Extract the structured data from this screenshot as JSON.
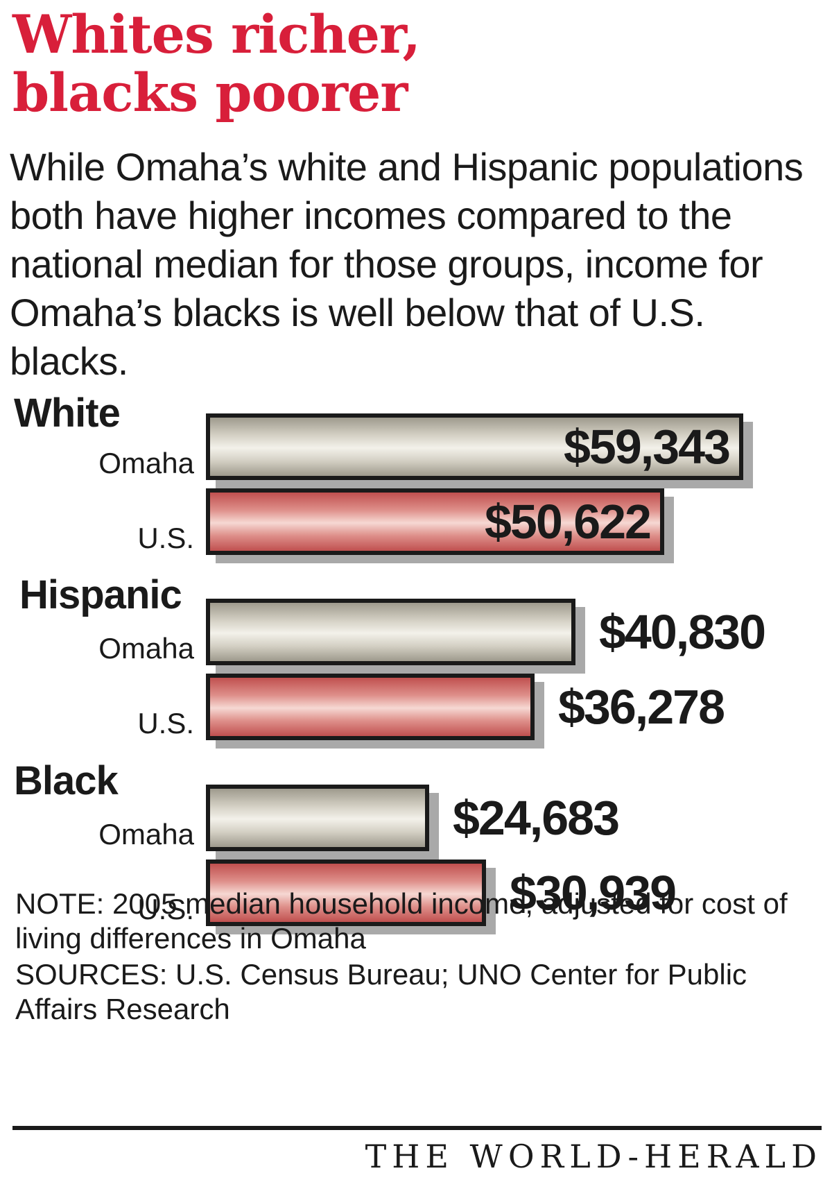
{
  "header": {
    "title_line1": "Whites richer,",
    "title_line2": "blacks poorer",
    "subtitle": "While Omaha’s white and Hispanic populations both have higher incomes compared to the national median for those groups, income for Omaha’s blacks is well below that of U.S. blacks."
  },
  "chart_data": {
    "type": "bar",
    "orientation": "horizontal",
    "title": "Whites richer, blacks poorer",
    "categories": [
      "White",
      "Hispanic",
      "Black"
    ],
    "series": [
      {
        "name": "Omaha",
        "values": [
          59343,
          40830,
          24683
        ],
        "color": "#d4d0c4"
      },
      {
        "name": "U.S.",
        "values": [
          50622,
          36278,
          30939
        ],
        "color": "#de8f8a"
      }
    ],
    "value_labels": [
      [
        "$59,343",
        "$50,622"
      ],
      [
        "$40,830",
        "$36,278"
      ],
      [
        "$24,683",
        "$30,939"
      ]
    ],
    "xlim": [
      0,
      59343
    ],
    "xlabel": "",
    "ylabel": ""
  },
  "footer": {
    "note": "NOTE: 2005 median household income, adjusted for cost of living differences in Omaha",
    "sources": "SOURCES: U.S. Census Bureau; UNO Center for Public Affairs Research",
    "logo": "THE WORLD-HERALD"
  },
  "colors": {
    "title": "#d81f3a",
    "text": "#1a1a1a",
    "shadow": "#a9a9a9"
  }
}
